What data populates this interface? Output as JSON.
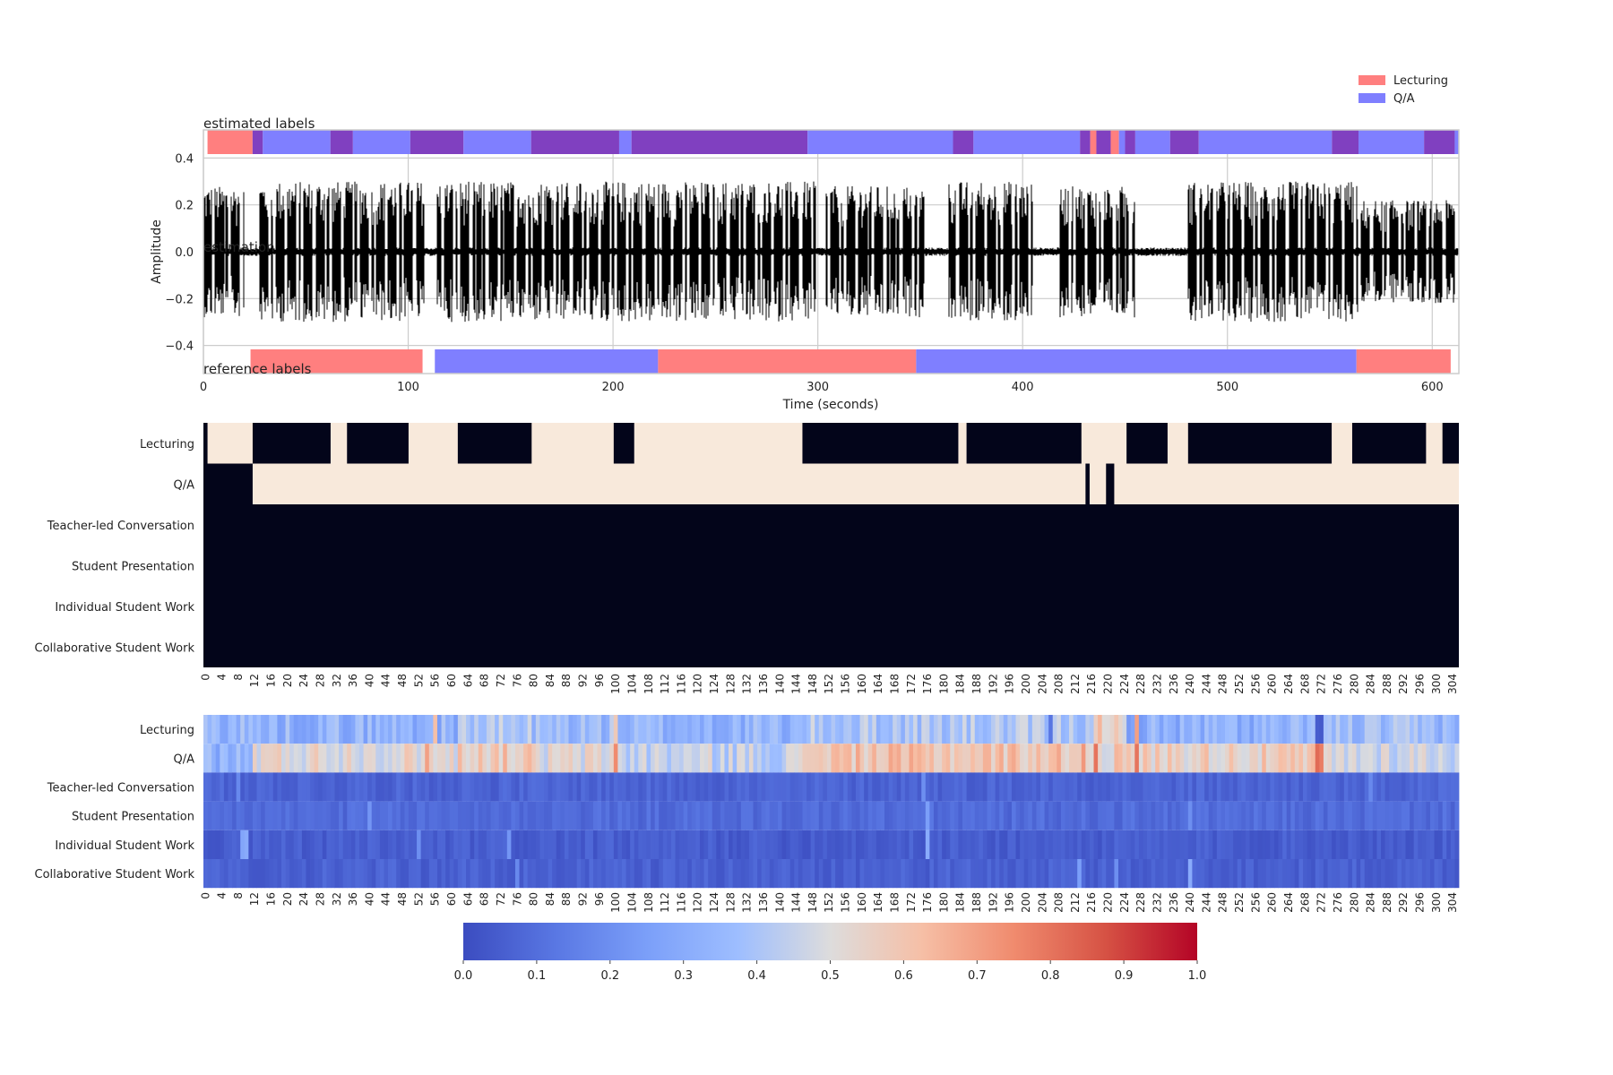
{
  "legend": {
    "items": [
      {
        "label": "Lecturing",
        "color": "#ff7f7f"
      },
      {
        "label": "Q/A",
        "color": "#7f7fff"
      }
    ],
    "placement": "top-right"
  },
  "colors": {
    "lecturing": "#ff7f7f",
    "qa": "#7f7fff",
    "overlap": "#8040c0",
    "binary_on": "#f8e9db",
    "binary_off": "#03051a"
  },
  "chart_data": [
    {
      "type": "line",
      "title": "",
      "xlabel": "Time (seconds)",
      "ylabel": "Amplitude",
      "xlim": [
        0,
        613
      ],
      "ylim": [
        -0.52,
        0.52
      ],
      "xticks": [
        0,
        100,
        200,
        300,
        400,
        500,
        600
      ],
      "yticks": [
        "0.4",
        "0.2",
        "0.0",
        "−0.2",
        "−0.4"
      ],
      "yticks_values": [
        0.4,
        0.2,
        0.0,
        -0.2,
        -0.4
      ],
      "grid": true,
      "texts": {
        "estimated": "estimated labels",
        "estimation": "estimation",
        "reference": "reference labels"
      },
      "activity": [
        [
          0,
          20,
          0.28
        ],
        [
          20,
          26,
          0.05
        ],
        [
          26,
          108,
          0.3
        ],
        [
          108,
          114,
          0.04
        ],
        [
          114,
          300,
          0.3
        ],
        [
          300,
          304,
          0.04
        ],
        [
          304,
          352,
          0.28
        ],
        [
          352,
          364,
          0.04
        ],
        [
          364,
          405,
          0.3
        ],
        [
          405,
          418,
          0.04
        ],
        [
          418,
          455,
          0.28
        ],
        [
          455,
          480,
          0.04
        ],
        [
          480,
          565,
          0.3
        ],
        [
          565,
          565,
          0.04
        ],
        [
          565,
          612,
          0.22
        ]
      ],
      "estimated_segments": [
        {
          "start": 2,
          "end": 24,
          "label": "Lecturing"
        },
        {
          "start": 24,
          "end": 29,
          "label": "both"
        },
        {
          "start": 29,
          "end": 62,
          "label": "Q/A"
        },
        {
          "start": 62,
          "end": 73,
          "label": "both"
        },
        {
          "start": 73,
          "end": 101,
          "label": "Q/A"
        },
        {
          "start": 101,
          "end": 127,
          "label": "both"
        },
        {
          "start": 127,
          "end": 160,
          "label": "Q/A"
        },
        {
          "start": 160,
          "end": 203,
          "label": "both"
        },
        {
          "start": 203,
          "end": 209,
          "label": "Q/A"
        },
        {
          "start": 209,
          "end": 295,
          "label": "both"
        },
        {
          "start": 295,
          "end": 366,
          "label": "Q/A"
        },
        {
          "start": 366,
          "end": 376,
          "label": "both"
        },
        {
          "start": 376,
          "end": 428,
          "label": "Q/A"
        },
        {
          "start": 428,
          "end": 433,
          "label": "both"
        },
        {
          "start": 433,
          "end": 436,
          "label": "Lecturing"
        },
        {
          "start": 436,
          "end": 443,
          "label": "both"
        },
        {
          "start": 443,
          "end": 447,
          "label": "Lecturing"
        },
        {
          "start": 447,
          "end": 450,
          "label": "Q/A"
        },
        {
          "start": 450,
          "end": 455,
          "label": "both"
        },
        {
          "start": 455,
          "end": 472,
          "label": "Q/A"
        },
        {
          "start": 472,
          "end": 486,
          "label": "both"
        },
        {
          "start": 486,
          "end": 551,
          "label": "Q/A"
        },
        {
          "start": 551,
          "end": 564,
          "label": "both"
        },
        {
          "start": 564,
          "end": 596,
          "label": "Q/A"
        },
        {
          "start": 596,
          "end": 611,
          "label": "both"
        },
        {
          "start": 611,
          "end": 613,
          "label": "Q/A"
        }
      ],
      "reference_segments": [
        {
          "start": 23,
          "end": 107,
          "label": "Lecturing"
        },
        {
          "start": 113,
          "end": 222,
          "label": "Q/A"
        },
        {
          "start": 222,
          "end": 348,
          "label": "Lecturing"
        },
        {
          "start": 348,
          "end": 563,
          "label": "Q/A"
        },
        {
          "start": 563,
          "end": 609,
          "label": "Lecturing"
        }
      ]
    },
    {
      "type": "heatmap",
      "title": "",
      "rows": [
        "Lecturing",
        "Q/A",
        "Teacher-led Conversation",
        "Student Presentation",
        "Individual Student Work",
        "Collaborative Student Work"
      ],
      "n_columns": 306,
      "xtick_step": 4,
      "xticks": [
        0,
        4,
        8,
        12,
        16,
        20,
        24,
        28,
        32,
        36,
        40,
        44,
        48,
        52,
        56,
        60,
        64,
        68,
        72,
        76,
        80,
        84,
        88,
        92,
        96,
        100,
        104,
        108,
        112,
        116,
        120,
        124,
        128,
        132,
        136,
        140,
        144,
        148,
        152,
        156,
        160,
        164,
        168,
        172,
        176,
        180,
        184,
        188,
        192,
        196,
        200,
        204,
        208,
        212,
        216,
        220,
        224,
        228,
        232,
        236,
        240,
        244,
        248,
        252,
        256,
        260,
        264,
        268,
        272,
        276,
        280,
        284,
        288,
        292,
        296,
        300,
        304
      ],
      "active_ranges": {
        "Lecturing": [
          [
            1,
            12
          ],
          [
            31,
            35
          ],
          [
            50,
            62
          ],
          [
            80,
            100
          ],
          [
            105,
            146
          ],
          [
            184,
            186
          ],
          [
            214,
            225
          ],
          [
            235,
            240
          ],
          [
            275,
            280
          ],
          [
            298,
            302
          ]
        ],
        "Q/A": [
          [
            12,
            215
          ],
          [
            216,
            220
          ],
          [
            222,
            306
          ]
        ],
        "Teacher-led Conversation": [],
        "Student Presentation": [],
        "Individual Student Work": [],
        "Collaborative Student Work": []
      }
    },
    {
      "type": "heatmap",
      "title": "",
      "rows": [
        "Lecturing",
        "Q/A",
        "Teacher-led Conversation",
        "Student Presentation",
        "Individual Student Work",
        "Collaborative Student Work"
      ],
      "n_columns": 306,
      "xtick_step": 4,
      "colorscale": "coolwarm",
      "vmin": 0.0,
      "vmax": 1.0,
      "colorbar_ticks": [
        "0.0",
        "0.1",
        "0.2",
        "0.3",
        "0.4",
        "0.5",
        "0.6",
        "0.7",
        "0.8",
        "0.9",
        "1.0"
      ],
      "row_means": {
        "Lecturing": [
          [
            0,
            12,
            0.35
          ],
          [
            12,
            62,
            0.33
          ],
          [
            62,
            80,
            0.4
          ],
          [
            80,
            100,
            0.36
          ],
          [
            100,
            146,
            0.33
          ],
          [
            146,
            215,
            0.4
          ],
          [
            215,
            225,
            0.48
          ],
          [
            225,
            272,
            0.32
          ],
          [
            272,
            306,
            0.36
          ]
        ],
        "Q/A": [
          [
            0,
            12,
            0.33
          ],
          [
            12,
            62,
            0.52
          ],
          [
            62,
            80,
            0.58
          ],
          [
            80,
            100,
            0.5
          ],
          [
            100,
            146,
            0.45
          ],
          [
            146,
            215,
            0.6
          ],
          [
            215,
            225,
            0.55
          ],
          [
            225,
            272,
            0.56
          ],
          [
            272,
            306,
            0.48
          ]
        ],
        "Teacher-led Conversation": [
          [
            0,
            306,
            0.07
          ]
        ],
        "Student Presentation": [
          [
            0,
            306,
            0.09
          ]
        ],
        "Individual Student Work": [
          [
            0,
            306,
            0.05
          ]
        ],
        "Collaborative Student Work": [
          [
            0,
            306,
            0.06
          ]
        ]
      },
      "spikes": {
        "Lecturing": [
          [
            56,
            0.62
          ],
          [
            100,
            0.58
          ],
          [
            218,
            0.65
          ],
          [
            222,
            0.6
          ],
          [
            227,
            0.7
          ],
          [
            271,
            0.05
          ],
          [
            272,
            0.04
          ],
          [
            206,
            0.12
          ]
        ],
        "Q/A": [
          [
            54,
            0.7
          ],
          [
            100,
            0.75
          ],
          [
            214,
            0.72
          ],
          [
            217,
            0.8
          ],
          [
            222,
            0.65
          ],
          [
            227,
            0.8
          ],
          [
            271,
            0.82
          ],
          [
            272,
            0.78
          ]
        ],
        "Teacher-led Conversation": [
          [
            8,
            0.18
          ],
          [
            175,
            0.2
          ],
          [
            284,
            0.18
          ]
        ],
        "Student Presentation": [
          [
            40,
            0.22
          ],
          [
            176,
            0.25
          ],
          [
            240,
            0.2
          ]
        ],
        "Individual Student Work": [
          [
            9,
            0.28
          ],
          [
            10,
            0.3
          ],
          [
            52,
            0.2
          ],
          [
            74,
            0.22
          ],
          [
            176,
            0.3
          ]
        ],
        "Collaborative Student Work": [
          [
            76,
            0.18
          ],
          [
            213,
            0.25
          ],
          [
            222,
            0.2
          ],
          [
            240,
            0.3
          ]
        ]
      }
    }
  ]
}
